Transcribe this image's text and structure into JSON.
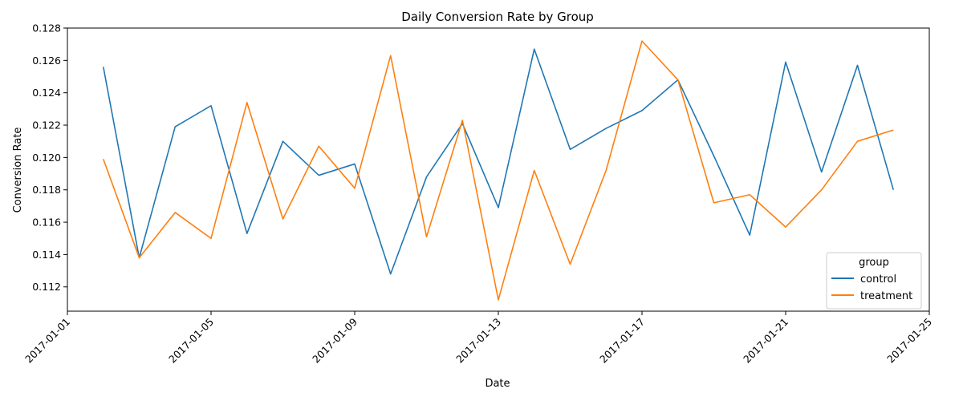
{
  "chart_data": {
    "type": "line",
    "title": "Daily Conversion Rate by Group",
    "xlabel": "Date",
    "ylabel": "Conversion Rate",
    "x": [
      "2017-01-02",
      "2017-01-03",
      "2017-01-04",
      "2017-01-05",
      "2017-01-06",
      "2017-01-07",
      "2017-01-08",
      "2017-01-09",
      "2017-01-10",
      "2017-01-11",
      "2017-01-12",
      "2017-01-13",
      "2017-01-14",
      "2017-01-15",
      "2017-01-16",
      "2017-01-17",
      "2017-01-18",
      "2017-01-19",
      "2017-01-20",
      "2017-01-21",
      "2017-01-22",
      "2017-01-23",
      "2017-01-24"
    ],
    "series": [
      {
        "name": "control",
        "color": "#1f77b4",
        "values": [
          0.1256,
          0.1138,
          0.1219,
          0.1232,
          0.1153,
          0.121,
          0.1189,
          0.1196,
          0.1128,
          0.1188,
          0.1221,
          0.1169,
          0.1267,
          0.1205,
          0.1218,
          0.1229,
          0.1248,
          0.1201,
          0.1152,
          0.1259,
          0.1191,
          0.1257,
          0.118
        ]
      },
      {
        "name": "treatment",
        "color": "#ff7f0e",
        "values": [
          0.1199,
          0.1138,
          0.1166,
          0.115,
          0.1234,
          0.1162,
          0.1207,
          0.1181,
          0.1263,
          0.1151,
          0.1223,
          0.1112,
          0.1192,
          0.1134,
          0.1192,
          0.1272,
          0.1248,
          0.1172,
          0.1177,
          0.1157,
          0.118,
          0.121,
          0.1217
        ]
      }
    ],
    "xticks": [
      "2017-01-01",
      "2017-01-05",
      "2017-01-09",
      "2017-01-13",
      "2017-01-17",
      "2017-01-21",
      "2017-01-25"
    ],
    "yticks": [
      "0.112",
      "0.114",
      "0.116",
      "0.118",
      "0.120",
      "0.122",
      "0.124",
      "0.126",
      "0.128"
    ],
    "xlim": [
      "2017-01-01",
      "2017-01-25"
    ],
    "ylim": [
      0.1105,
      0.128
    ],
    "grid": false,
    "legend": {
      "title": "group",
      "placement": "lower-right"
    }
  }
}
